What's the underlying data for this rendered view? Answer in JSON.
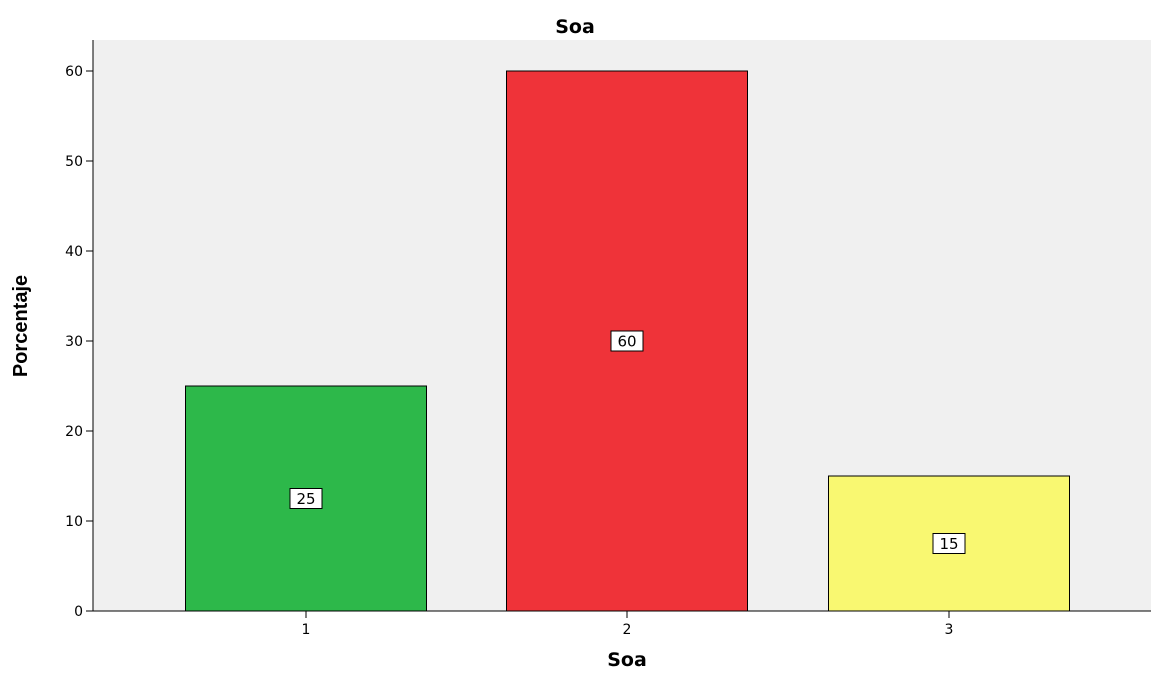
{
  "chart_data": {
    "type": "bar",
    "title": "Soa",
    "xlabel": "Soa",
    "ylabel": "Porcentaje",
    "categories": [
      "1",
      "2",
      "3"
    ],
    "values": [
      25,
      60,
      15
    ],
    "data_labels": [
      "25",
      "60",
      "15"
    ],
    "ylim": [
      0,
      63
    ],
    "yticks": [
      0,
      10,
      20,
      30,
      40,
      50,
      60
    ],
    "ytick_labels": [
      "0",
      "10",
      "20",
      "30",
      "40",
      "50",
      "60"
    ],
    "grid": false,
    "legend": "none",
    "colors": [
      "#2db84a",
      "#ef3339",
      "#f9f871"
    ],
    "plot_background": "#f0f0f0"
  }
}
